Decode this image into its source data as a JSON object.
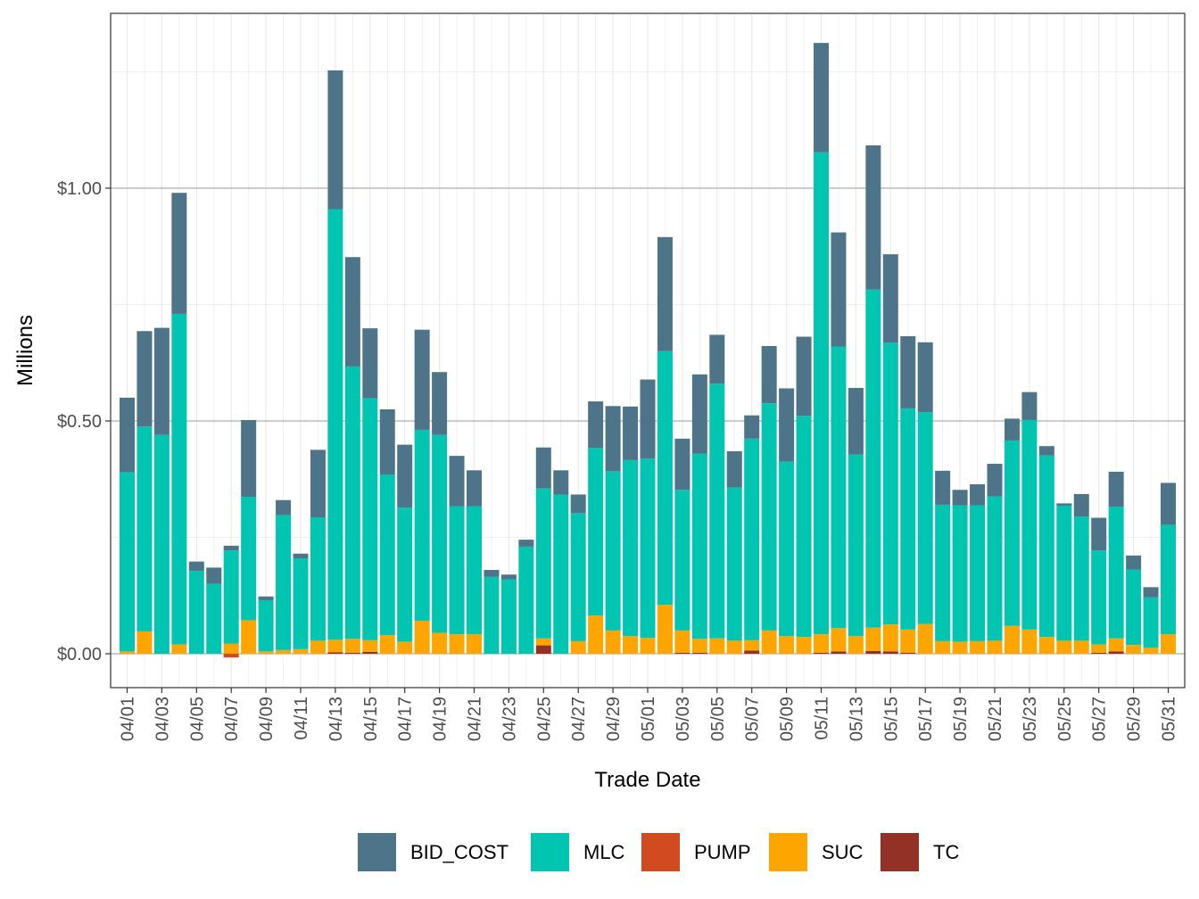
{
  "chart_data": {
    "type": "bar",
    "stacked": true,
    "title": "",
    "xlabel": "Trade Date",
    "ylabel": "Millions",
    "ylim": [
      -0.07,
      1.37
    ],
    "y_ticks": [
      0.0,
      0.5,
      1.0
    ],
    "y_tick_labels": [
      "$0.00",
      "$0.50",
      "$1.00"
    ],
    "categories": [
      "04/01",
      "04/02",
      "04/03",
      "04/04",
      "04/05",
      "04/06",
      "04/07",
      "04/08",
      "04/09",
      "04/10",
      "04/11",
      "04/12",
      "04/13",
      "04/14",
      "04/15",
      "04/16",
      "04/17",
      "04/18",
      "04/19",
      "04/20",
      "04/21",
      "04/22",
      "04/23",
      "04/24",
      "04/25",
      "04/26",
      "04/27",
      "04/28",
      "04/29",
      "04/30",
      "05/01",
      "05/02",
      "05/03",
      "05/04",
      "05/05",
      "05/06",
      "05/07",
      "05/08",
      "05/09",
      "05/10",
      "05/11",
      "05/12",
      "05/13",
      "05/14",
      "05/15",
      "05/16",
      "05/17",
      "05/18",
      "05/19",
      "05/20",
      "05/21",
      "05/22",
      "05/23",
      "05/24",
      "05/25",
      "05/26",
      "05/27",
      "05/28",
      "05/29",
      "05/30",
      "05/31"
    ],
    "x_tick_labels": [
      "04/01",
      "04/03",
      "04/05",
      "04/07",
      "04/09",
      "04/11",
      "04/13",
      "04/15",
      "04/17",
      "04/19",
      "04/21",
      "04/23",
      "04/25",
      "04/27",
      "04/29",
      "05/01",
      "05/03",
      "05/05",
      "05/07",
      "05/09",
      "05/11",
      "05/13",
      "05/15",
      "05/17",
      "05/19",
      "05/21",
      "05/23",
      "05/25",
      "05/27",
      "05/29",
      "05/31"
    ],
    "legend_position": "bottom",
    "series": [
      {
        "name": "TC",
        "color": "#943126",
        "values": [
          0,
          0,
          0,
          0,
          0,
          0,
          0,
          0,
          0,
          0,
          0,
          0,
          0.003,
          0.002,
          0.004,
          0,
          0,
          0,
          0,
          0,
          0,
          0,
          0,
          0,
          0.018,
          0,
          0,
          0,
          0,
          0,
          0,
          0,
          0.002,
          0.002,
          0,
          0,
          0.007,
          0,
          0,
          0,
          0.002,
          0.005,
          0,
          0.006,
          0.005,
          0.002,
          0,
          0,
          0,
          0,
          0,
          0,
          0,
          0,
          0,
          0,
          0.002,
          0.005,
          0,
          0,
          0
        ]
      },
      {
        "name": "PUMP",
        "color": "#D24A1F",
        "values": [
          0,
          0,
          0,
          0,
          0,
          0,
          -0.008,
          0,
          0,
          0,
          0,
          0,
          0,
          0,
          0,
          0,
          0,
          0,
          0,
          0,
          0,
          0,
          0,
          0,
          0,
          0,
          0,
          0,
          0,
          0,
          0,
          0,
          0,
          0,
          0,
          0,
          0,
          0,
          0,
          0,
          0,
          0,
          0,
          0,
          0,
          0,
          0,
          0,
          0,
          0,
          0,
          0,
          0,
          0,
          0,
          0,
          0,
          0,
          0,
          0,
          0
        ]
      },
      {
        "name": "SUC",
        "color": "#FFA500",
        "values": [
          0.005,
          0.048,
          0,
          0.02,
          0,
          0,
          0.022,
          0.072,
          0.005,
          0.008,
          0.01,
          0.028,
          0.027,
          0.03,
          0.025,
          0.04,
          0.026,
          0.071,
          0.045,
          0.042,
          0.042,
          0,
          0,
          0,
          0.015,
          0,
          0.027,
          0.082,
          0.05,
          0.038,
          0.034,
          0.105,
          0.048,
          0.03,
          0.033,
          0.028,
          0.022,
          0.05,
          0.038,
          0.036,
          0.04,
          0.05,
          0.038,
          0.05,
          0.058,
          0.05,
          0.064,
          0.027,
          0.026,
          0.027,
          0.028,
          0.06,
          0.052,
          0.036,
          0.028,
          0.028,
          0.018,
          0.028,
          0.019,
          0.013,
          0.042
        ]
      },
      {
        "name": "MLC",
        "color": "#00C5B0",
        "values": [
          0.385,
          0.44,
          0.47,
          0.71,
          0.178,
          0.15,
          0.2,
          0.265,
          0.11,
          0.29,
          0.195,
          0.265,
          0.925,
          0.585,
          0.52,
          0.345,
          0.288,
          0.41,
          0.425,
          0.275,
          0.275,
          0.165,
          0.16,
          0.23,
          0.322,
          0.342,
          0.275,
          0.36,
          0.342,
          0.378,
          0.385,
          0.545,
          0.302,
          0.398,
          0.547,
          0.329,
          0.433,
          0.488,
          0.375,
          0.475,
          1.035,
          0.605,
          0.39,
          0.726,
          0.605,
          0.475,
          0.455,
          0.293,
          0.293,
          0.292,
          0.31,
          0.398,
          0.45,
          0.39,
          0.29,
          0.267,
          0.202,
          0.283,
          0.162,
          0.108,
          0.235
        ]
      },
      {
        "name": "BID_COST",
        "color": "#4E7489",
        "values": [
          0.16,
          0.205,
          0.23,
          0.26,
          0.02,
          0.035,
          0.01,
          0.165,
          0.008,
          0.032,
          0.01,
          0.145,
          0.298,
          0.235,
          0.15,
          0.14,
          0.135,
          0.215,
          0.135,
          0.108,
          0.077,
          0.015,
          0.01,
          0.015,
          0.088,
          0.052,
          0.04,
          0.1,
          0.14,
          0.115,
          0.17,
          0.245,
          0.11,
          0.17,
          0.105,
          0.078,
          0.05,
          0.123,
          0.157,
          0.17,
          0.235,
          0.245,
          0.143,
          0.31,
          0.19,
          0.155,
          0.15,
          0.073,
          0.033,
          0.045,
          0.07,
          0.047,
          0.06,
          0.02,
          0.005,
          0.048,
          0.07,
          0.075,
          0.03,
          0.022,
          0.09
        ]
      }
    ],
    "legend_order": [
      "BID_COST",
      "MLC",
      "PUMP",
      "SUC",
      "TC"
    ]
  }
}
